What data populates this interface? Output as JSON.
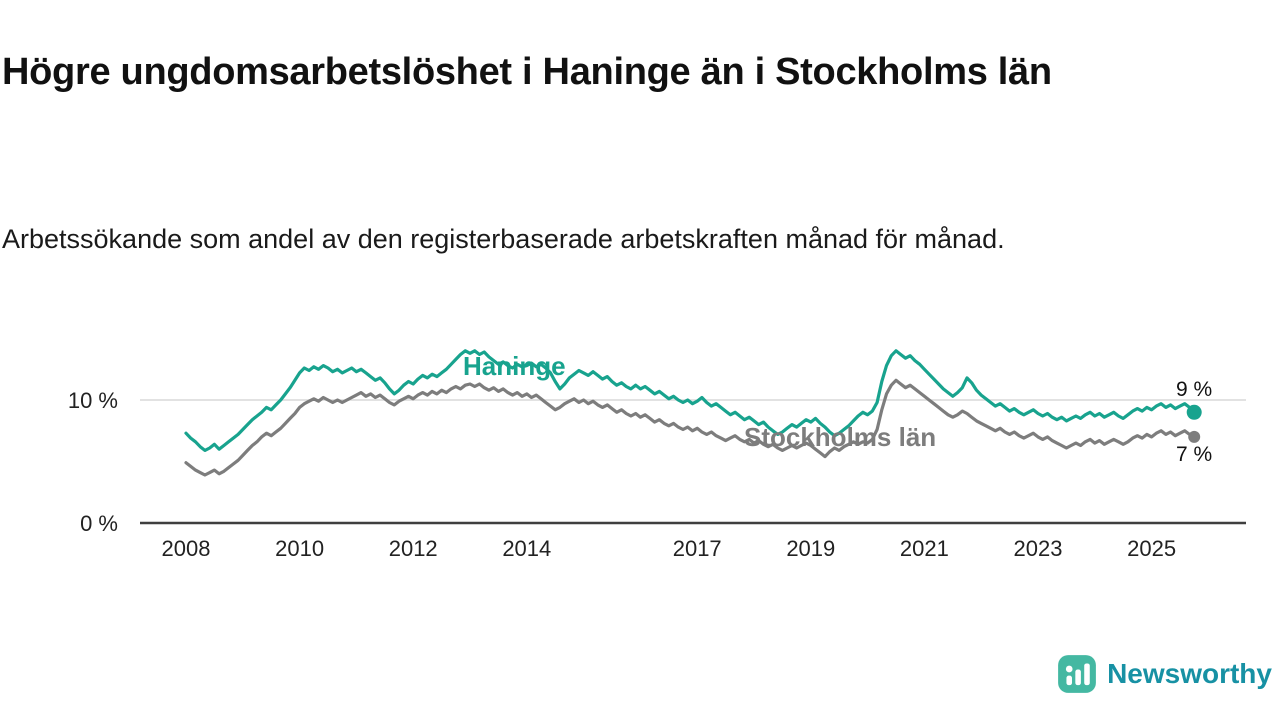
{
  "header": {
    "title": "Högre ungdomsarbetslöshet i Haninge än i Stockholms län",
    "subtitle": "Arbetssökande som andel av den registerbaserade arbetskraften månad för månad."
  },
  "colors": {
    "haninge": "#18a38e",
    "stockholm": "#7d7d7d",
    "axis": "#3f3f3f",
    "grid": "#d9d9d9",
    "tick_text": "#222222",
    "logo_icon": "#44b8a2",
    "logo_text": "#1791a4"
  },
  "annotations": {
    "haninge_label": "Haninge",
    "stockholm_label": "Stockholms län",
    "haninge_end_label": "9 %",
    "stockholm_end_label": "7 %"
  },
  "logo": {
    "name": "Newsworthy",
    "icon": "bar-chart-badge-icon"
  },
  "chart_data": {
    "type": "line",
    "title": "Högre ungdomsarbetslöshet i Haninge än i Stockholms län",
    "subtitle": "Arbetssökande som andel av den registerbaserade arbetskraften månad för månad.",
    "x_start": 2008.0,
    "points_per_year": 12,
    "x_ticks": [
      2008,
      2010,
      2012,
      2014,
      2017,
      2019,
      2021,
      2023,
      2025
    ],
    "y_ticks": [
      {
        "value": 0,
        "label": "0 %"
      },
      {
        "value": 10,
        "label": "10 %"
      }
    ],
    "ylim": [
      0,
      15
    ],
    "grid": "single-horizontal-gridline-at-10",
    "legend_position": "inline-labels-on-chart",
    "series": [
      {
        "name": "Haninge",
        "end_value": 9,
        "end_label": "9 %",
        "values": [
          7.3,
          6.9,
          6.6,
          6.2,
          5.9,
          6.1,
          6.4,
          6.0,
          6.3,
          6.6,
          6.9,
          7.2,
          7.6,
          8.0,
          8.4,
          8.7,
          9.0,
          9.4,
          9.2,
          9.6,
          10.0,
          10.5,
          11.0,
          11.6,
          12.2,
          12.6,
          12.4,
          12.7,
          12.5,
          12.8,
          12.6,
          12.3,
          12.5,
          12.2,
          12.4,
          12.6,
          12.3,
          12.5,
          12.2,
          11.9,
          11.6,
          11.8,
          11.4,
          10.9,
          10.5,
          10.8,
          11.2,
          11.5,
          11.3,
          11.7,
          12.0,
          11.8,
          12.1,
          11.9,
          12.2,
          12.5,
          12.9,
          13.3,
          13.7,
          14.0,
          13.8,
          14.0,
          13.7,
          13.9,
          13.5,
          13.2,
          12.9,
          13.1,
          12.8,
          12.6,
          12.9,
          12.7,
          12.8,
          13.0,
          12.7,
          12.9,
          12.6,
          12.2,
          11.5,
          10.9,
          11.3,
          11.8,
          12.1,
          12.4,
          12.2,
          12.0,
          12.3,
          12.0,
          11.7,
          11.9,
          11.5,
          11.2,
          11.4,
          11.1,
          10.9,
          11.2,
          10.9,
          11.1,
          10.8,
          10.5,
          10.7,
          10.4,
          10.1,
          10.3,
          10.0,
          9.8,
          10.0,
          9.7,
          9.9,
          10.2,
          9.8,
          9.5,
          9.7,
          9.4,
          9.1,
          8.8,
          9.0,
          8.7,
          8.4,
          8.6,
          8.3,
          8.0,
          8.2,
          7.8,
          7.5,
          7.2,
          7.4,
          7.7,
          8.0,
          7.8,
          8.1,
          8.4,
          8.2,
          8.5,
          8.1,
          7.8,
          7.4,
          7.1,
          7.3,
          7.6,
          7.9,
          8.3,
          8.7,
          9.0,
          8.8,
          9.1,
          9.8,
          11.5,
          12.8,
          13.6,
          14.0,
          13.7,
          13.4,
          13.6,
          13.2,
          12.9,
          12.5,
          12.1,
          11.7,
          11.3,
          10.9,
          10.6,
          10.3,
          10.6,
          11.0,
          11.8,
          11.4,
          10.8,
          10.4,
          10.1,
          9.8,
          9.5,
          9.7,
          9.4,
          9.1,
          9.3,
          9.0,
          8.8,
          9.0,
          9.2,
          8.9,
          8.7,
          8.9,
          8.6,
          8.4,
          8.6,
          8.3,
          8.5,
          8.7,
          8.5,
          8.8,
          9.0,
          8.7,
          8.9,
          8.6,
          8.8,
          9.0,
          8.7,
          8.5,
          8.8,
          9.1,
          9.3,
          9.1,
          9.4,
          9.2,
          9.5,
          9.7,
          9.4,
          9.6,
          9.3,
          9.5,
          9.7,
          9.4,
          9.0
        ]
      },
      {
        "name": "Stockholms län",
        "end_value": 7,
        "end_label": "7 %",
        "values": [
          4.9,
          4.6,
          4.3,
          4.1,
          3.9,
          4.1,
          4.3,
          4.0,
          4.2,
          4.5,
          4.8,
          5.1,
          5.5,
          5.9,
          6.3,
          6.6,
          7.0,
          7.3,
          7.1,
          7.4,
          7.7,
          8.1,
          8.5,
          8.9,
          9.4,
          9.7,
          9.9,
          10.1,
          9.9,
          10.2,
          10.0,
          9.8,
          10.0,
          9.8,
          10.0,
          10.2,
          10.4,
          10.6,
          10.3,
          10.5,
          10.2,
          10.4,
          10.1,
          9.8,
          9.6,
          9.9,
          10.1,
          10.3,
          10.1,
          10.4,
          10.6,
          10.4,
          10.7,
          10.5,
          10.8,
          10.6,
          10.9,
          11.1,
          10.9,
          11.2,
          11.3,
          11.1,
          11.3,
          11.0,
          10.8,
          11.0,
          10.7,
          10.9,
          10.6,
          10.4,
          10.6,
          10.3,
          10.5,
          10.2,
          10.4,
          10.1,
          9.8,
          9.5,
          9.2,
          9.4,
          9.7,
          9.9,
          10.1,
          9.8,
          10.0,
          9.7,
          9.9,
          9.6,
          9.4,
          9.6,
          9.3,
          9.0,
          9.2,
          8.9,
          8.7,
          8.9,
          8.6,
          8.8,
          8.5,
          8.2,
          8.4,
          8.1,
          7.9,
          8.1,
          7.8,
          7.6,
          7.8,
          7.5,
          7.7,
          7.4,
          7.2,
          7.4,
          7.1,
          6.9,
          6.7,
          6.9,
          7.1,
          6.8,
          6.6,
          6.8,
          6.5,
          6.7,
          6.4,
          6.2,
          6.4,
          6.1,
          5.9,
          6.1,
          6.3,
          6.1,
          6.3,
          6.5,
          6.3,
          6.0,
          5.7,
          5.4,
          5.8,
          6.1,
          5.9,
          6.2,
          6.4,
          6.6,
          6.4,
          6.6,
          6.5,
          6.8,
          7.6,
          9.2,
          10.5,
          11.2,
          11.6,
          11.3,
          11.0,
          11.2,
          10.9,
          10.6,
          10.3,
          10.0,
          9.7,
          9.4,
          9.1,
          8.8,
          8.6,
          8.8,
          9.1,
          8.9,
          8.6,
          8.3,
          8.1,
          7.9,
          7.7,
          7.5,
          7.7,
          7.4,
          7.2,
          7.4,
          7.1,
          6.9,
          7.1,
          7.3,
          7.0,
          6.8,
          7.0,
          6.7,
          6.5,
          6.3,
          6.1,
          6.3,
          6.5,
          6.3,
          6.6,
          6.8,
          6.5,
          6.7,
          6.4,
          6.6,
          6.8,
          6.6,
          6.4,
          6.6,
          6.9,
          7.1,
          6.9,
          7.2,
          7.0,
          7.3,
          7.5,
          7.2,
          7.4,
          7.1,
          7.3,
          7.5,
          7.2,
          7.0
        ]
      }
    ]
  }
}
